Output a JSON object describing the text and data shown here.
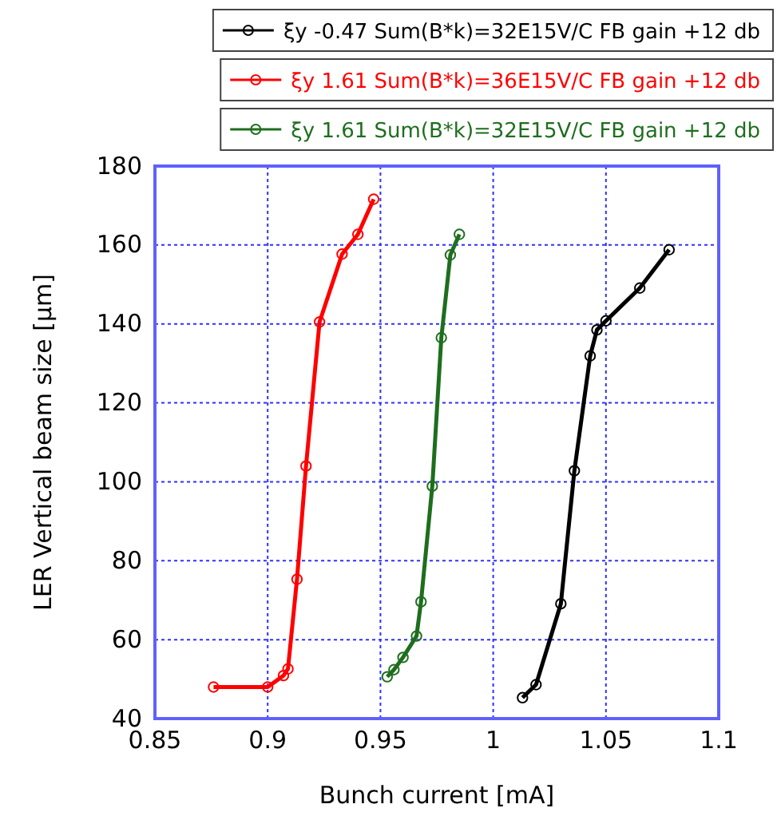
{
  "chart_data": {
    "type": "line",
    "xlabel": "Bunch current [mA]",
    "ylabel": "LER Vertical beam size [μm]",
    "xlim": [
      0.85,
      1.1
    ],
    "xticks": [
      0.85,
      0.9,
      0.95,
      1,
      1.05,
      1.1
    ],
    "ylim": [
      40,
      180
    ],
    "yticks": [
      40,
      60,
      80,
      100,
      120,
      140,
      160,
      180
    ],
    "grid": true,
    "legend": "top",
    "marker": "circle",
    "line_style": "solid",
    "series": [
      {
        "name": "ξy -0.47 Sum(B*k)=32E15V/C FB gain +12 db",
        "color": "#000000",
        "x": [
          1.013,
          1.019,
          1.03,
          1.036,
          1.043,
          1.046,
          1.05,
          1.065,
          1.078
        ],
        "values": [
          45.3,
          48.6,
          69.1,
          102.8,
          131.9,
          138.5,
          140.8,
          149.1,
          158.8
        ]
      },
      {
        "name": "ξy 1.61 Sum(B*k)=36E15V/C FB gain +12 db",
        "color": "#ff0000",
        "x": [
          0.876,
          0.9,
          0.907,
          0.909,
          0.913,
          0.917,
          0.923,
          0.933,
          0.94,
          0.947
        ],
        "values": [
          48,
          48,
          50.9,
          52.6,
          75.3,
          104,
          140.5,
          157.7,
          162.7,
          171.6
        ]
      },
      {
        "name": "ξy 1.61 Sum(B*k)=32E15V/C FB gain +12 db",
        "color": "#1e6e1e",
        "x": [
          0.953,
          0.956,
          0.96,
          0.966,
          0.968,
          0.973,
          0.977,
          0.981,
          0.985
        ],
        "values": [
          50.6,
          52.4,
          55.5,
          60.9,
          69.6,
          98.9,
          136.5,
          157.5,
          162.7
        ]
      }
    ]
  }
}
